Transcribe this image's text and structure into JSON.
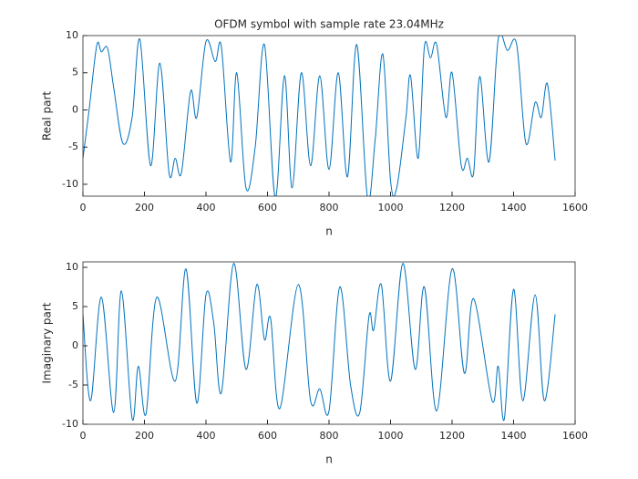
{
  "chart_data": [
    {
      "type": "line",
      "title": "OFDM symbol with sample rate 23.04MHz",
      "x_label": "n",
      "y_label": "Real part",
      "xlim": [
        0,
        1600
      ],
      "xticks": [
        0,
        200,
        400,
        600,
        800,
        1000,
        1200,
        1400,
        1600
      ],
      "ylim": [
        -11.6,
        10
      ],
      "yticks": [
        -10,
        -5,
        0,
        5,
        10
      ],
      "grid": false,
      "series": [
        {
          "color": "#0072bd",
          "x": [
            0,
            20,
            45,
            60,
            80,
            100,
            130,
            160,
            185,
            220,
            250,
            280,
            300,
            320,
            350,
            370,
            400,
            430,
            450,
            480,
            500,
            530,
            560,
            590,
            625,
            655,
            680,
            710,
            740,
            770,
            800,
            830,
            860,
            890,
            925,
            950,
            975,
            1000,
            1020,
            1050,
            1065,
            1090,
            1110,
            1130,
            1150,
            1180,
            1200,
            1230,
            1250,
            1270,
            1290,
            1320,
            1350,
            1380,
            1410,
            1440,
            1470,
            1490,
            1510,
            1535
          ],
          "values": [
            -6.5,
            0,
            8.7,
            7.8,
            8.3,
            3,
            -4.5,
            -1,
            9.5,
            -7.5,
            6.3,
            -8.5,
            -6.5,
            -8.5,
            2.5,
            -1,
            9.2,
            6.5,
            8.5,
            -7,
            5,
            -10.5,
            -5,
            8.8,
            -11.8,
            4.6,
            -10.5,
            5,
            -7.5,
            4.6,
            -8,
            5,
            -9,
            8.8,
            -11.8,
            -4,
            7.5,
            -9.5,
            -10.5,
            -1,
            4.6,
            -6.5,
            8.5,
            7,
            8.8,
            -1,
            5,
            -7.5,
            -6.5,
            -8.5,
            4.5,
            -7,
            9.5,
            8,
            8.8,
            -4.5,
            1,
            -1,
            3.5,
            -6.8
          ]
        }
      ]
    },
    {
      "type": "line",
      "x_label": "n",
      "y_label": "Imaginary part",
      "xlim": [
        0,
        1600
      ],
      "xticks": [
        0,
        200,
        400,
        600,
        800,
        1000,
        1200,
        1400,
        1600
      ],
      "ylim": [
        -10,
        10.7
      ],
      "yticks": [
        -10,
        -5,
        0,
        5,
        10
      ],
      "grid": false,
      "series": [
        {
          "color": "#0072bd",
          "x": [
            0,
            25,
            60,
            100,
            125,
            160,
            180,
            205,
            240,
            300,
            335,
            370,
            400,
            425,
            450,
            490,
            530,
            565,
            590,
            610,
            640,
            700,
            740,
            770,
            800,
            835,
            870,
            900,
            930,
            945,
            970,
            1000,
            1040,
            1080,
            1110,
            1150,
            1200,
            1240,
            1270,
            1330,
            1350,
            1370,
            1400,
            1430,
            1470,
            1500,
            1535
          ],
          "values": [
            4,
            -7,
            6.2,
            -8.5,
            7,
            -9.3,
            -2.6,
            -8.7,
            6.2,
            -4.5,
            9.8,
            -7.3,
            6.5,
            3,
            -6,
            10.5,
            -3,
            7.8,
            0.8,
            3.5,
            -8,
            7.8,
            -7,
            -5.5,
            -8.3,
            7.5,
            -5,
            -8.5,
            3.8,
            2,
            7.8,
            -4.5,
            10.5,
            -3,
            7.5,
            -8.3,
            9.8,
            -3.5,
            6,
            -7,
            -2.6,
            -9.3,
            7.2,
            -7,
            6.5,
            -7,
            4
          ]
        }
      ]
    }
  ]
}
